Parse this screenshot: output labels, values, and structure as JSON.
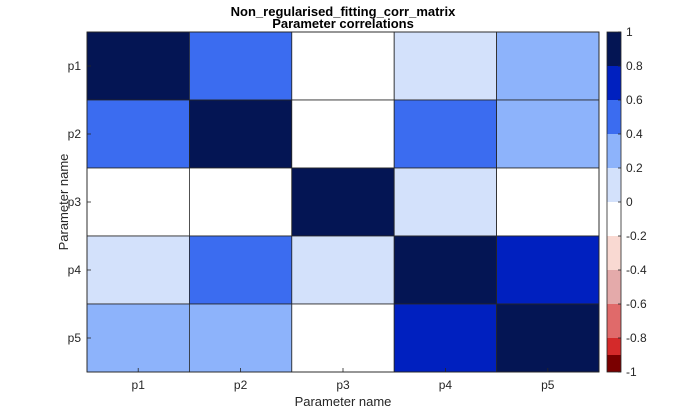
{
  "chart_data": {
    "type": "heatmap",
    "title": "Non_regularised_fitting_corr_matrix",
    "subtitle": "Parameter correlations",
    "xlabel": "Parameter name",
    "ylabel": "Parameter name",
    "x_categories": [
      "p1",
      "p2",
      "p3",
      "p4",
      "p5"
    ],
    "y_categories": [
      "p1",
      "p2",
      "p3",
      "p4",
      "p5"
    ],
    "values": [
      [
        1.0,
        0.55,
        0.0,
        0.15,
        0.35
      ],
      [
        0.55,
        1.0,
        0.0,
        0.55,
        0.35
      ],
      [
        0.0,
        0.0,
        1.0,
        0.15,
        0.0
      ],
      [
        0.15,
        0.55,
        0.15,
        1.0,
        0.75
      ],
      [
        0.35,
        0.35,
        0.0,
        0.75,
        1.0
      ]
    ],
    "color_range": [
      -1,
      1
    ],
    "colorbar": {
      "ticks": [
        1,
        0.8,
        0.6,
        0.4,
        0.2,
        0,
        -0.2,
        -0.4,
        -0.6,
        -0.8,
        -1
      ],
      "tick_labels": [
        "1",
        "0.8",
        "0.6",
        "0.4",
        "0.2",
        "0",
        "-0.2",
        "-0.4",
        "-0.6",
        "-0.8",
        "-1"
      ],
      "levels": [
        {
          "from": 0.8,
          "to": 1.0,
          "color": "#041554"
        },
        {
          "from": 0.6,
          "to": 0.8,
          "color": "#0020bf"
        },
        {
          "from": 0.4,
          "to": 0.6,
          "color": "#3b6cf0"
        },
        {
          "from": 0.2,
          "to": 0.4,
          "color": "#8db3fb"
        },
        {
          "from": 0.0,
          "to": 0.2,
          "color": "#d3e1fb"
        },
        {
          "from": -0.2,
          "to": 0.0,
          "color": "#ffffff"
        },
        {
          "from": -0.4,
          "to": -0.2,
          "color": "#f9d9d2"
        },
        {
          "from": -0.6,
          "to": -0.4,
          "color": "#e4aaaa"
        },
        {
          "from": -0.8,
          "to": -0.6,
          "color": "#e06a6a"
        },
        {
          "from": -0.9,
          "to": -0.8,
          "color": "#d42a2a"
        },
        {
          "from": -1.0,
          "to": -0.9,
          "color": "#7a0000"
        }
      ]
    }
  }
}
